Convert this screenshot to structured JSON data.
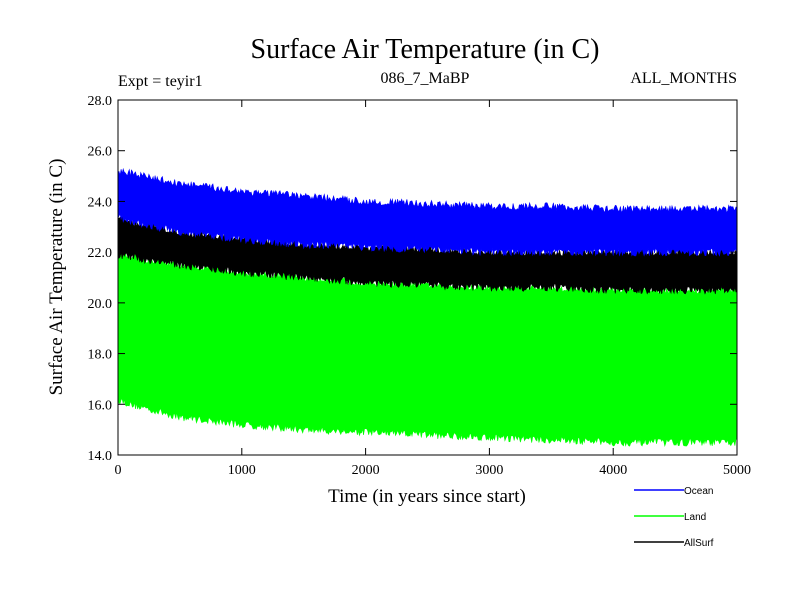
{
  "chart_data": {
    "type": "area",
    "title": "Surface Air Temperature (in C)",
    "subtitle_left": "Expt = teyir1",
    "subtitle_center": "086_7_MaBP",
    "subtitle_right": "ALL_MONTHS",
    "xlabel": "Time (in years since start)",
    "ylabel": "Surface Air Temperature (in C)",
    "xlim": [
      0,
      5000
    ],
    "ylim": [
      14.0,
      28.0
    ],
    "x_ticks": [
      0,
      1000,
      2000,
      3000,
      4000,
      5000
    ],
    "x_tick_labels": [
      "0",
      "1000",
      "2000",
      "3000",
      "4000",
      "5000"
    ],
    "y_ticks": [
      14,
      16,
      18,
      20,
      22,
      24,
      26,
      28
    ],
    "y_tick_labels": [
      "14.0",
      "16.0",
      "18.0",
      "20.0",
      "22.0",
      "24.0",
      "26.0",
      "28.0"
    ],
    "series": [
      {
        "name": "Land",
        "color": "#00ff00",
        "x": [
          0,
          100,
          500,
          1000,
          1500,
          2000,
          2500,
          3000,
          3500,
          4000,
          4500,
          5000
        ],
        "upper": [
          22.0,
          21.8,
          21.5,
          21.2,
          21.0,
          20.8,
          20.7,
          20.6,
          20.6,
          20.5,
          20.5,
          20.5
        ],
        "lower": [
          16.2,
          16.0,
          15.5,
          15.2,
          15.0,
          14.9,
          14.8,
          14.7,
          14.6,
          14.5,
          14.5,
          14.5
        ]
      },
      {
        "name": "AllSurf",
        "color": "#000000",
        "x": [
          0,
          100,
          500,
          1000,
          1500,
          2000,
          2500,
          3000,
          3500,
          4000,
          4500,
          5000
        ],
        "upper": [
          23.4,
          23.2,
          22.8,
          22.5,
          22.3,
          22.2,
          22.1,
          22.0,
          22.0,
          22.0,
          22.0,
          22.0
        ],
        "lower": [
          21.9,
          21.8,
          21.5,
          21.2,
          21.0,
          20.8,
          20.7,
          20.6,
          20.6,
          20.5,
          20.5,
          20.5
        ]
      },
      {
        "name": "Ocean",
        "color": "#0000ff",
        "x": [
          0,
          100,
          500,
          1000,
          1500,
          2000,
          2500,
          3000,
          3500,
          4000,
          4500,
          5000
        ],
        "upper": [
          25.2,
          25.1,
          24.7,
          24.4,
          24.2,
          24.0,
          23.9,
          23.8,
          23.8,
          23.7,
          23.7,
          23.7
        ],
        "lower": [
          23.4,
          23.2,
          22.8,
          22.5,
          22.3,
          22.2,
          22.1,
          22.0,
          22.0,
          22.0,
          22.0,
          22.0
        ]
      }
    ],
    "legend": [
      {
        "label": "Ocean",
        "color": "#0000ff"
      },
      {
        "label": "Land",
        "color": "#00ff00"
      },
      {
        "label": "AllSurf",
        "color": "#000000"
      }
    ]
  }
}
